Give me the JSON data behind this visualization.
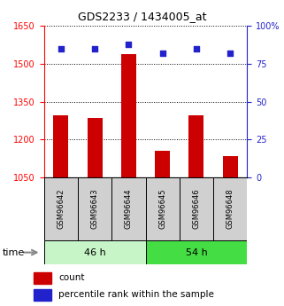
{
  "title": "GDS2233 / 1434005_at",
  "categories": [
    "GSM96642",
    "GSM96643",
    "GSM96644",
    "GSM96645",
    "GSM96646",
    "GSM96648"
  ],
  "counts": [
    1295,
    1285,
    1540,
    1155,
    1295,
    1135
  ],
  "percentiles": [
    85,
    85,
    88,
    82,
    85,
    82
  ],
  "ylim_left": [
    1050,
    1650
  ],
  "ylim_right": [
    0,
    100
  ],
  "yticks_left": [
    1050,
    1200,
    1350,
    1500,
    1650
  ],
  "yticks_right": [
    0,
    25,
    50,
    75,
    100
  ],
  "ytick_right_labels": [
    "0",
    "25",
    "50",
    "75",
    "100%"
  ],
  "groups": [
    {
      "label": "46 h",
      "start": 0,
      "end": 2,
      "color": "#C8F5C8"
    },
    {
      "label": "54 h",
      "start": 3,
      "end": 5,
      "color": "#44DD44"
    }
  ],
  "bar_color": "#CC0000",
  "dot_color": "#2222CC",
  "label_bg_color": "#D0D0D0",
  "time_label": "time",
  "legend_count_label": "count",
  "legend_percentile_label": "percentile rank within the sample",
  "fig_width": 3.21,
  "fig_height": 3.45,
  "dpi": 100
}
